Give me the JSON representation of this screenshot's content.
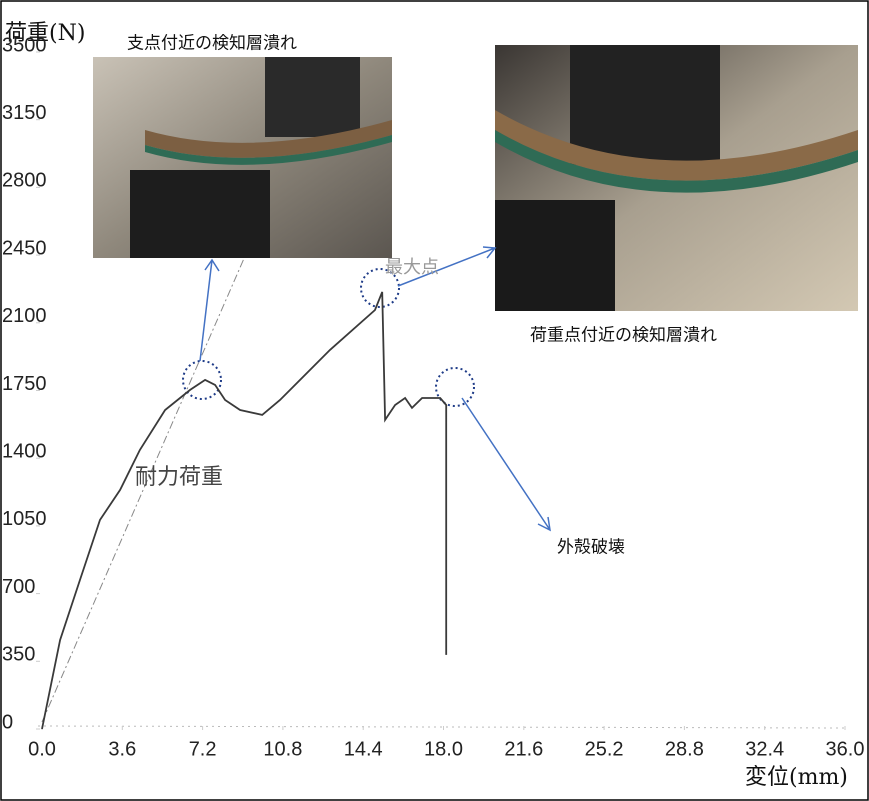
{
  "chart_data": {
    "type": "line",
    "y_label": "荷重(N)",
    "x_label": "変位(mm)",
    "xlim": [
      0,
      36
    ],
    "ylim": [
      0,
      3500
    ],
    "xticks": [
      {
        "value": 0,
        "label": "0.0"
      },
      3.6,
      7.2,
      10.8,
      14.4,
      {
        "value": 18,
        "label": "18.0"
      },
      21.6,
      25.2,
      28.8,
      32.4,
      {
        "value": 36,
        "label": "36.0"
      }
    ],
    "yticks": [
      0,
      350,
      700,
      1050,
      1400,
      1750,
      2100,
      2450,
      2800,
      3150,
      3500
    ],
    "x": [
      0,
      0.81,
      1.7,
      2.6,
      3.5,
      4.39,
      5.52,
      6.64,
      7.31,
      7.76,
      8.21,
      8.88,
      9.87,
      10.67,
      12.91,
      14.93,
      15.25,
      15.38,
      15.83,
      16.28,
      16.59,
      17.04,
      17.85,
      18.12,
      18.12
    ],
    "values": [
      0,
      460,
      770,
      1081,
      1236,
      1443,
      1649,
      1753,
      1805,
      1779,
      1701,
      1649,
      1624,
      1701,
      1960,
      2166,
      2260,
      1598,
      1675,
      1711,
      1660,
      1711,
      1711,
      1675,
      383
    ],
    "color": "#3a3a3a",
    "annotations": [
      "支点付近の検知層潰れ",
      "荷重点付近の検知層潰れ",
      "外殻破壊",
      "耐力荷重",
      "最大点"
    ]
  }
}
